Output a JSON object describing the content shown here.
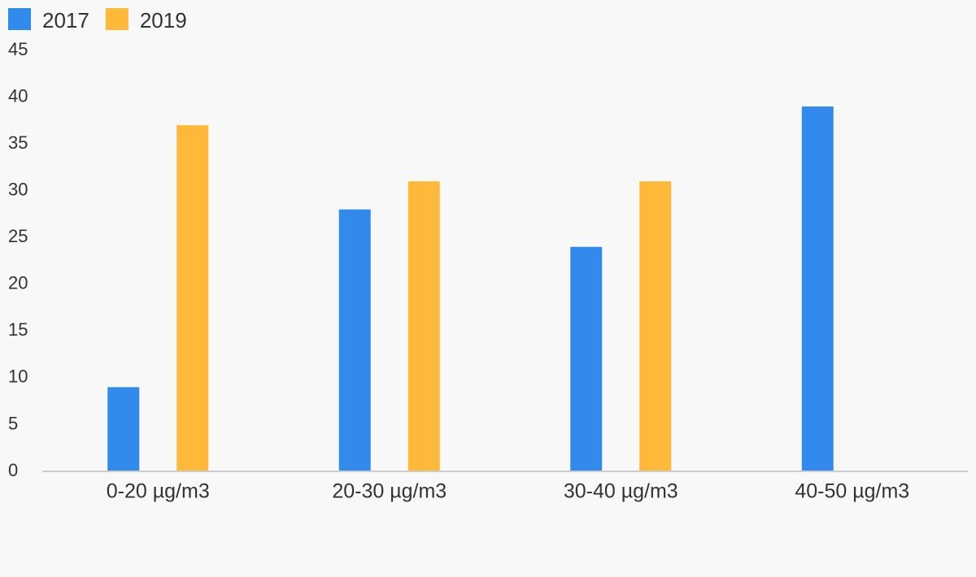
{
  "chart_data": {
    "type": "bar",
    "categories": [
      "0-20 µg/m3",
      "20-30 µg/m3",
      "30-40 µg/m3",
      "40-50 µg/m3"
    ],
    "series": [
      {
        "name": "2017",
        "color": "#328bec",
        "values": [
          9,
          28,
          24,
          39
        ]
      },
      {
        "name": "2019",
        "color": "#feb93a",
        "values": [
          37,
          31,
          31,
          null
        ]
      }
    ],
    "ylim": [
      0,
      45
    ],
    "yticks": [
      0,
      5,
      10,
      15,
      20,
      25,
      30,
      35,
      40,
      45
    ],
    "grid": false,
    "legend": "top-left"
  }
}
